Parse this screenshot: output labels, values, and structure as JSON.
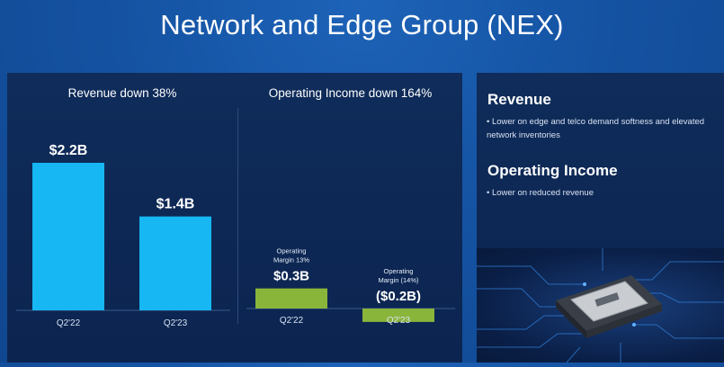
{
  "slide": {
    "title": "Network and Edge Group (NEX)"
  },
  "chart_data": [
    {
      "type": "bar",
      "title": "Revenue down 38%",
      "categories": [
        "Q2'22",
        "Q2'23"
      ],
      "values": [
        2.2,
        1.4
      ],
      "value_labels": [
        "$2.2B",
        "$1.4B"
      ],
      "bar_color": "#16b7f2",
      "ylim": [
        0,
        2.2
      ]
    },
    {
      "type": "bar",
      "title": "Operating Income down 164%",
      "categories": [
        "Q2'22",
        "Q2'23"
      ],
      "values": [
        0.3,
        -0.2
      ],
      "value_labels": [
        "$0.3B",
        "($0.2B)"
      ],
      "annotations": [
        "Operating\nMargin 13%",
        "Operating\nMargin (14%)"
      ],
      "bar_color": "#8ab53b"
    }
  ],
  "commentary": {
    "revenue": {
      "heading": "Revenue",
      "bullet": "• Lower on edge and telco demand softness and elevated network inventories"
    },
    "operating_income": {
      "heading": "Operating Income",
      "bullet": "• Lower on reduced revenue"
    }
  },
  "colors": {
    "background": "#1553a3",
    "panel": "#0e2956",
    "revenue_bar": "#16b7f2",
    "income_bar": "#8ab53b"
  }
}
